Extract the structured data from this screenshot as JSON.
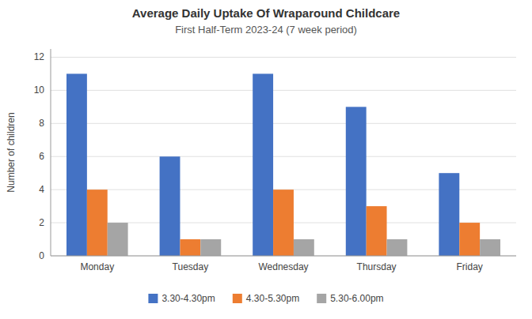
{
  "chart_data": {
    "type": "bar",
    "title": "Average Daily Uptake Of Wraparound Childcare",
    "subtitle": "First Half-Term 2023-24 (7 week period)",
    "categories": [
      "Monday",
      "Tuesday",
      "Wednesday",
      "Thursday",
      "Friday"
    ],
    "series": [
      {
        "name": "3.30-4.30pm",
        "color": "#4472C4",
        "values": [
          11,
          6,
          11,
          9,
          5
        ]
      },
      {
        "name": "4.30-5.30pm",
        "color": "#ED7D31",
        "values": [
          4,
          1,
          4,
          3,
          2
        ]
      },
      {
        "name": "5.30-6.00pm",
        "color": "#A5A5A5",
        "values": [
          2,
          1,
          1,
          1,
          1
        ]
      }
    ],
    "ylabel": "Number of children",
    "ylim": [
      0,
      12.5
    ],
    "yticks": [
      0,
      2,
      4,
      6,
      8,
      10,
      12
    ],
    "grid": true,
    "legend": "bottom"
  }
}
